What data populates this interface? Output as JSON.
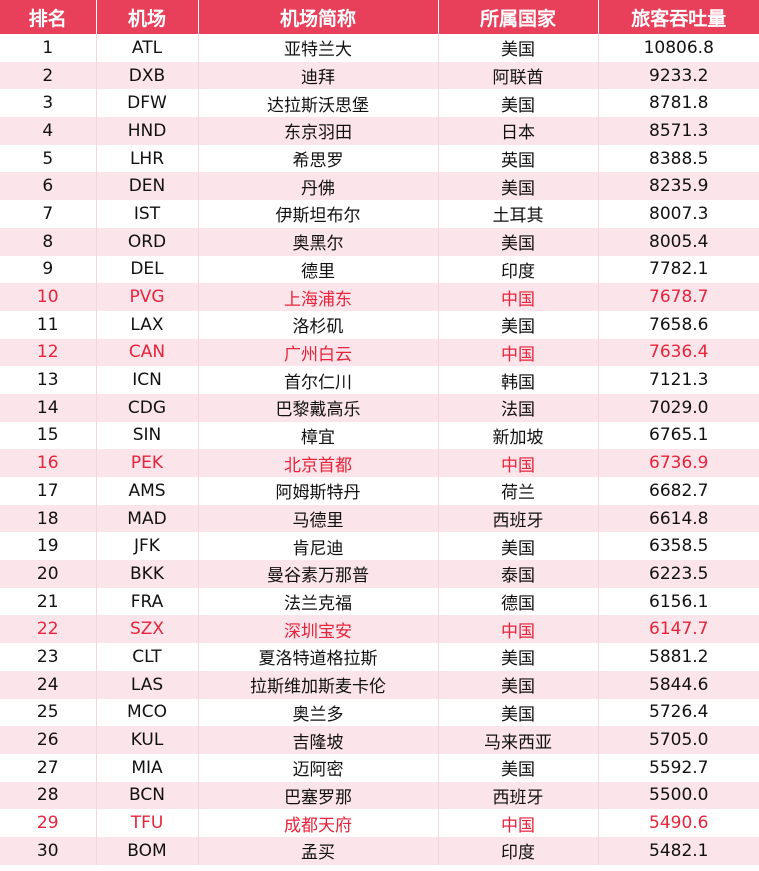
{
  "header": [
    "排名",
    "机场",
    "机场简称",
    "所属国家",
    "旅客吞吐量"
  ],
  "colors": {
    "header_bg": "#e8405a",
    "stripe": "#fbe5ea",
    "highlight_text": "#e8233b"
  },
  "rows": [
    {
      "rank": "1",
      "code": "ATL",
      "name": "亚特兰大",
      "country": "美国",
      "passengers": "10806.8",
      "highlight": false
    },
    {
      "rank": "2",
      "code": "DXB",
      "name": "迪拜",
      "country": "阿联酋",
      "passengers": "9233.2",
      "highlight": false
    },
    {
      "rank": "3",
      "code": "DFW",
      "name": "达拉斯沃思堡",
      "country": "美国",
      "passengers": "8781.8",
      "highlight": false
    },
    {
      "rank": "4",
      "code": "HND",
      "name": "东京羽田",
      "country": "日本",
      "passengers": "8571.3",
      "highlight": false
    },
    {
      "rank": "5",
      "code": "LHR",
      "name": "希思罗",
      "country": "英国",
      "passengers": "8388.5",
      "highlight": false
    },
    {
      "rank": "6",
      "code": "DEN",
      "name": "丹佛",
      "country": "美国",
      "passengers": "8235.9",
      "highlight": false
    },
    {
      "rank": "7",
      "code": "IST",
      "name": "伊斯坦布尔",
      "country": "土耳其",
      "passengers": "8007.3",
      "highlight": false
    },
    {
      "rank": "8",
      "code": "ORD",
      "name": "奥黑尔",
      "country": "美国",
      "passengers": "8005.4",
      "highlight": false
    },
    {
      "rank": "9",
      "code": "DEL",
      "name": "德里",
      "country": "印度",
      "passengers": "7782.1",
      "highlight": false
    },
    {
      "rank": "10",
      "code": "PVG",
      "name": "上海浦东",
      "country": "中国",
      "passengers": "7678.7",
      "highlight": true
    },
    {
      "rank": "11",
      "code": "LAX",
      "name": "洛杉矶",
      "country": "美国",
      "passengers": "7658.6",
      "highlight": false
    },
    {
      "rank": "12",
      "code": "CAN",
      "name": "广州白云",
      "country": "中国",
      "passengers": "7636.4",
      "highlight": true
    },
    {
      "rank": "13",
      "code": "ICN",
      "name": "首尔仁川",
      "country": "韩国",
      "passengers": "7121.3",
      "highlight": false
    },
    {
      "rank": "14",
      "code": "CDG",
      "name": "巴黎戴高乐",
      "country": "法国",
      "passengers": "7029.0",
      "highlight": false
    },
    {
      "rank": "15",
      "code": "SIN",
      "name": "樟宜",
      "country": "新加坡",
      "passengers": "6765.1",
      "highlight": false
    },
    {
      "rank": "16",
      "code": "PEK",
      "name": "北京首都",
      "country": "中国",
      "passengers": "6736.9",
      "highlight": true
    },
    {
      "rank": "17",
      "code": "AMS",
      "name": "阿姆斯特丹",
      "country": "荷兰",
      "passengers": "6682.7",
      "highlight": false
    },
    {
      "rank": "18",
      "code": "MAD",
      "name": "马德里",
      "country": "西班牙",
      "passengers": "6614.8",
      "highlight": false
    },
    {
      "rank": "19",
      "code": "JFK",
      "name": "肯尼迪",
      "country": "美国",
      "passengers": "6358.5",
      "highlight": false
    },
    {
      "rank": "20",
      "code": "BKK",
      "name": "曼谷素万那普",
      "country": "泰国",
      "passengers": "6223.5",
      "highlight": false
    },
    {
      "rank": "21",
      "code": "FRA",
      "name": "法兰克福",
      "country": "德国",
      "passengers": "6156.1",
      "highlight": false
    },
    {
      "rank": "22",
      "code": "SZX",
      "name": "深圳宝安",
      "country": "中国",
      "passengers": "6147.7",
      "highlight": true
    },
    {
      "rank": "23",
      "code": "CLT",
      "name": "夏洛特道格拉斯",
      "country": "美国",
      "passengers": "5881.2",
      "highlight": false
    },
    {
      "rank": "24",
      "code": "LAS",
      "name": "拉斯维加斯麦卡伦",
      "country": "美国",
      "passengers": "5844.6",
      "highlight": false
    },
    {
      "rank": "25",
      "code": "MCO",
      "name": "奥兰多",
      "country": "美国",
      "passengers": "5726.4",
      "highlight": false
    },
    {
      "rank": "26",
      "code": "KUL",
      "name": "吉隆坡",
      "country": "马来西亚",
      "passengers": "5705.0",
      "highlight": false
    },
    {
      "rank": "27",
      "code": "MIA",
      "name": "迈阿密",
      "country": "美国",
      "passengers": "5592.7",
      "highlight": false
    },
    {
      "rank": "28",
      "code": "BCN",
      "name": "巴塞罗那",
      "country": "西班牙",
      "passengers": "5500.0",
      "highlight": false
    },
    {
      "rank": "29",
      "code": "TFU",
      "name": "成都天府",
      "country": "中国",
      "passengers": "5490.6",
      "highlight": true
    },
    {
      "rank": "30",
      "code": "BOM",
      "name": "孟买",
      "country": "印度",
      "passengers": "5482.1",
      "highlight": false
    }
  ]
}
